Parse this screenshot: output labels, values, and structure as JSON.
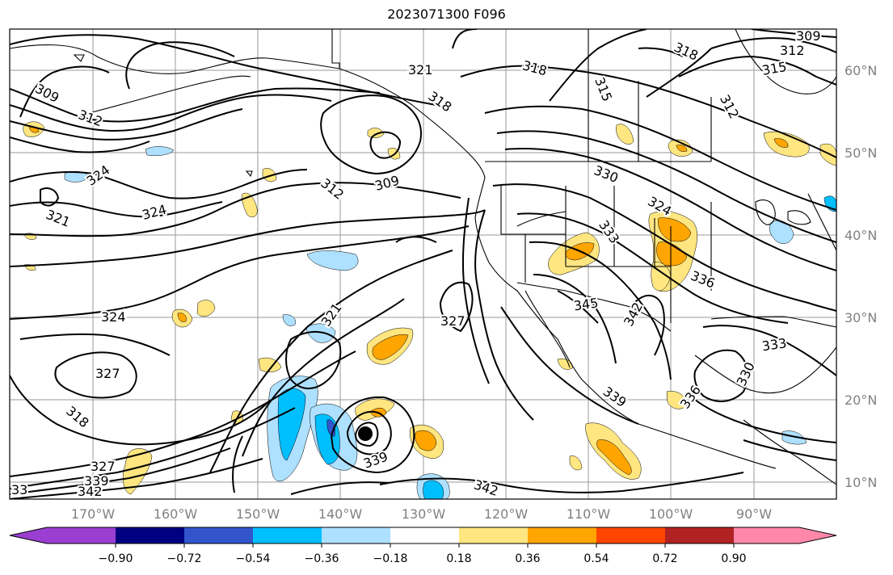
{
  "title": "2023071300 F096",
  "map": {
    "lat_labels": [
      "60°N",
      "50°N",
      "40°N",
      "30°N",
      "20°N",
      "10°N"
    ],
    "lon_labels": [
      "170°W",
      "160°W",
      "150°W",
      "140°W",
      "130°W",
      "120°W",
      "110°W",
      "100°W",
      "90°W"
    ],
    "contour_labels": [
      "309",
      "312",
      "324",
      "321",
      "324",
      "324",
      "327",
      "318",
      "342",
      "339",
      "327",
      "33",
      "321",
      "318",
      "309",
      "312",
      "321",
      "327",
      "330",
      "324",
      "333",
      "336",
      "345",
      "342",
      "333",
      "330",
      "339",
      "339",
      "342",
      "336",
      "312",
      "315",
      "318",
      "309",
      "312",
      "315",
      "318"
    ]
  },
  "colorbar": {
    "ticks": [
      "−0.90",
      "−0.72",
      "−0.54",
      "−0.36",
      "−0.18",
      "0.18",
      "0.36",
      "0.54",
      "0.72",
      "0.90"
    ],
    "colors": [
      "#9a3fd1",
      "#000080",
      "#3355cc",
      "#00bfff",
      "#aee0ff",
      "#ffffff",
      "#ffe680",
      "#ffa500",
      "#ff4500",
      "#b22222",
      "#ff88aa"
    ]
  },
  "fill_colors": {
    "light_blue": "#aee0ff",
    "deep_sky": "#00bfff",
    "yellow": "#ffe680",
    "orange": "#ffa500",
    "blue": "#3355cc"
  }
}
